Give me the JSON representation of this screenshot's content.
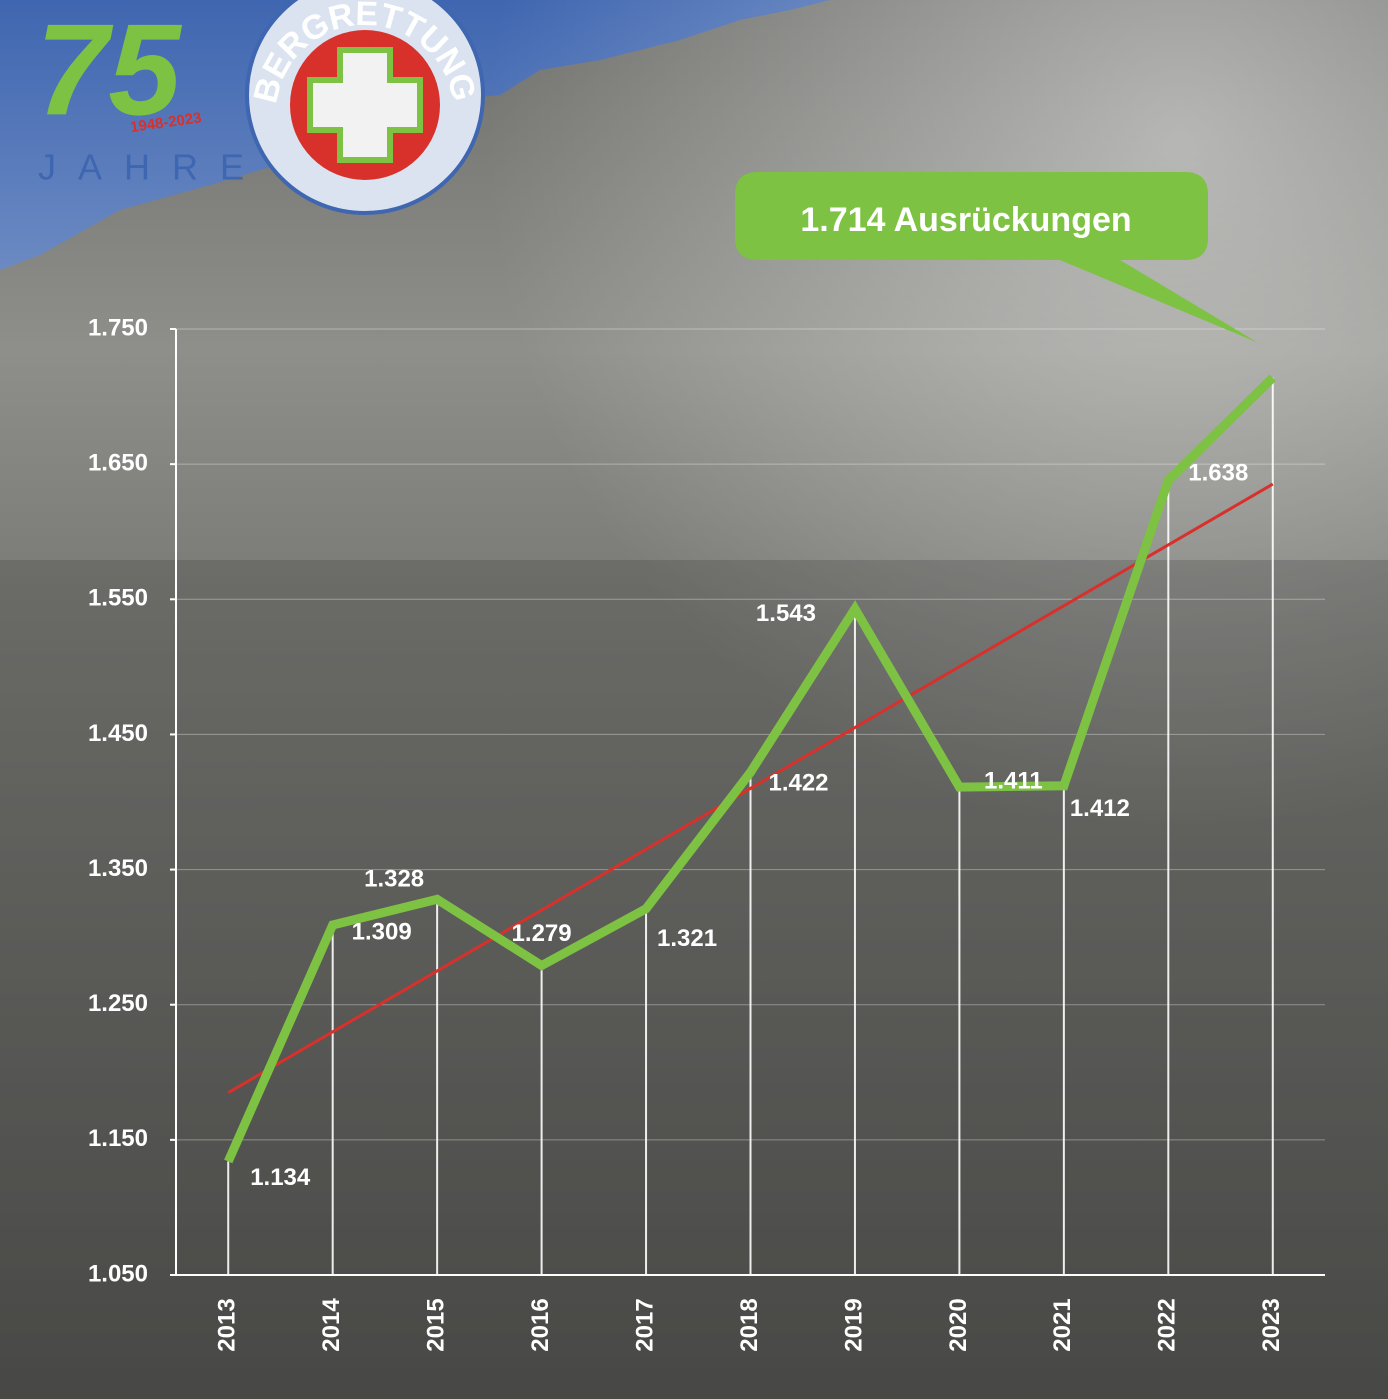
{
  "logo": {
    "number": "75",
    "years": "1948-2023",
    "word": "JAHRE",
    "org": "BERGRETTUNG"
  },
  "chart_data": {
    "type": "line",
    "categories": [
      "2013",
      "2014",
      "2015",
      "2016",
      "2017",
      "2018",
      "2019",
      "2020",
      "2021",
      "2022",
      "2023"
    ],
    "series": [
      {
        "color": "#7dc242",
        "values": [
          1134,
          1309,
          1328,
          1279,
          1321,
          1422,
          1543,
          1411,
          1412,
          1638,
          1714
        ],
        "value_labels": [
          "1.134",
          "1.309",
          "1.328",
          "1.279",
          "1.321",
          "1.422",
          "1.543",
          "1.411",
          "1.412",
          "1.638",
          "1.714 Ausrückungen"
        ]
      }
    ],
    "trendline": {
      "kind": "linear",
      "color": "#d8312c"
    },
    "ylim": [
      1050,
      1750
    ],
    "yticks": [
      {
        "value": 1050,
        "label": "1.050"
      },
      {
        "value": 1150,
        "label": "1.150"
      },
      {
        "value": 1250,
        "label": "1.250"
      },
      {
        "value": 1350,
        "label": "1.350"
      },
      {
        "value": 1450,
        "label": "1.450"
      },
      {
        "value": 1550,
        "label": "1.550"
      },
      {
        "value": 1650,
        "label": "1.650"
      },
      {
        "value": 1750,
        "label": "1.750"
      }
    ],
    "grid": true
  }
}
